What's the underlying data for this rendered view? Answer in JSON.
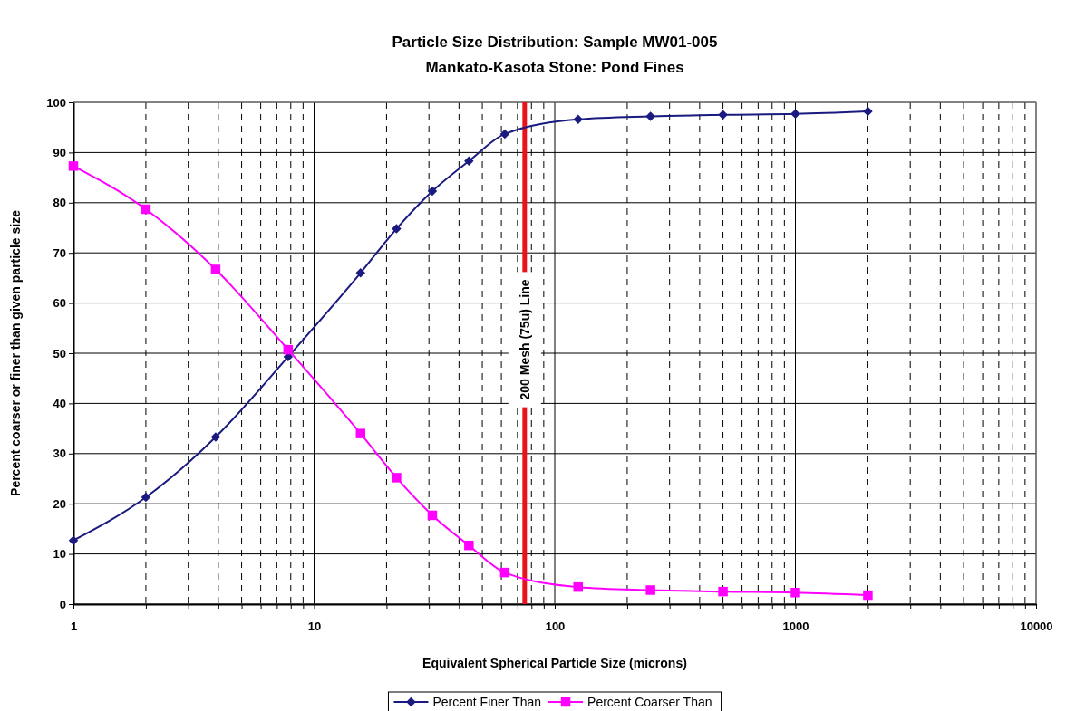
{
  "chart_data": {
    "type": "line",
    "title": "Particle Size Distribution: Sample MW01-005",
    "subtitle": "Mankato-Kasota Stone: Pond Fines",
    "xlabel": "Equivalent Spherical Particle Size (microns)",
    "ylabel": "Percent coarser or finer than given particle size",
    "x": [
      1,
      2,
      3.9,
      7.8,
      15.6,
      22,
      31,
      44,
      62,
      125,
      250,
      500,
      1000,
      2000
    ],
    "series": [
      {
        "name": "Percent Finer Than",
        "color": "#1a1a80",
        "marker": "diamond",
        "values": [
          12.7,
          21.3,
          33.3,
          49.3,
          66,
          74.8,
          82.3,
          88.3,
          93.7,
          96.6,
          97.2,
          97.5,
          97.7,
          98.2
        ]
      },
      {
        "name": "Percent Coarser Than",
        "color": "#ff00ff",
        "marker": "square",
        "values": [
          87.3,
          78.7,
          66.7,
          50.7,
          34,
          25.2,
          17.7,
          11.7,
          6.3,
          3.4,
          2.8,
          2.5,
          2.3,
          1.8
        ]
      }
    ],
    "log": "x",
    "xlim": [
      1,
      10000
    ],
    "xticks": [
      1,
      {
        "value": 2,
        "label": null
      },
      {
        "value": 3,
        "label": null
      },
      {
        "value": 4,
        "label": null
      },
      {
        "value": 5,
        "label": null
      },
      {
        "value": 6,
        "label": null
      },
      {
        "value": 7,
        "label": null
      },
      {
        "value": 8,
        "label": null
      },
      {
        "value": 9,
        "label": null
      },
      10,
      {
        "value": 20,
        "label": null
      },
      {
        "value": 30,
        "label": null
      },
      {
        "value": 40,
        "label": null
      },
      {
        "value": 50,
        "label": null
      },
      {
        "value": 60,
        "label": null
      },
      {
        "value": 70,
        "label": null
      },
      {
        "value": 80,
        "label": null
      },
      {
        "value": 90,
        "label": null
      },
      100,
      {
        "value": 200,
        "label": null
      },
      {
        "value": 300,
        "label": null
      },
      {
        "value": 400,
        "label": null
      },
      {
        "value": 500,
        "label": null
      },
      {
        "value": 600,
        "label": null
      },
      {
        "value": 700,
        "label": null
      },
      {
        "value": 800,
        "label": null
      },
      {
        "value": 900,
        "label": null
      },
      1000,
      {
        "value": 2000,
        "label": null
      },
      {
        "value": 3000,
        "label": null
      },
      {
        "value": 4000,
        "label": null
      },
      {
        "value": 5000,
        "label": null
      },
      {
        "value": 6000,
        "label": null
      },
      {
        "value": 7000,
        "label": null
      },
      {
        "value": 8000,
        "label": null
      },
      {
        "value": 9000,
        "label": null
      },
      10000
    ],
    "ylim": [
      0,
      100
    ],
    "yticks": [
      0,
      10,
      20,
      30,
      40,
      50,
      60,
      70,
      80,
      90,
      100
    ],
    "grid": true,
    "legend": "bottom",
    "line_style": "solid",
    "ref_lines": [
      {
        "axis": "x",
        "value": 75,
        "label": "200 Mesh (75u) Line",
        "color": "#e8141c"
      }
    ]
  }
}
